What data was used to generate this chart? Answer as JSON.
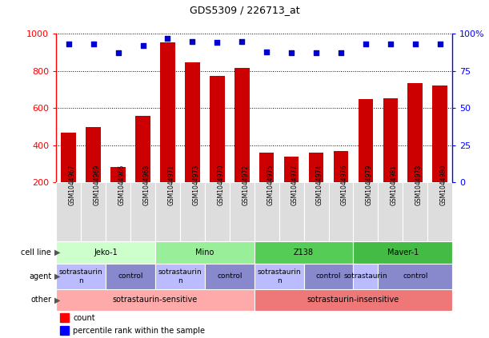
{
  "title": "GDS5309 / 226713_at",
  "samples": [
    "GSM1044967",
    "GSM1044969",
    "GSM1044966",
    "GSM1044968",
    "GSM1044971",
    "GSM1044973",
    "GSM1044970",
    "GSM1044972",
    "GSM1044975",
    "GSM1044977",
    "GSM1044974",
    "GSM1044976",
    "GSM1044979",
    "GSM1044981",
    "GSM1044978",
    "GSM1044980"
  ],
  "counts": [
    470,
    500,
    285,
    560,
    955,
    845,
    775,
    815,
    360,
    340,
    360,
    368,
    650,
    655,
    735,
    720
  ],
  "percentiles": [
    93,
    93,
    87,
    92,
    97,
    95,
    94,
    95,
    88,
    87,
    87,
    87,
    93,
    93,
    93,
    93
  ],
  "bar_color": "#cc0000",
  "dot_color": "#0000cc",
  "ylim_left": [
    200,
    1000
  ],
  "ylim_right": [
    0,
    100
  ],
  "yticks_left": [
    200,
    400,
    600,
    800,
    1000
  ],
  "yticks_right": [
    0,
    25,
    50,
    75,
    100
  ],
  "cell_lines": [
    {
      "label": "Jeko-1",
      "start": 0,
      "end": 4,
      "color": "#ccffcc"
    },
    {
      "label": "Mino",
      "start": 4,
      "end": 8,
      "color": "#99ee99"
    },
    {
      "label": "Z138",
      "start": 8,
      "end": 12,
      "color": "#55cc55"
    },
    {
      "label": "Maver-1",
      "start": 12,
      "end": 16,
      "color": "#44bb44"
    }
  ],
  "agents": [
    {
      "label": "sotrastaurin\nn",
      "start": 0,
      "end": 2,
      "color": "#bbbbff"
    },
    {
      "label": "control",
      "start": 2,
      "end": 4,
      "color": "#8888cc"
    },
    {
      "label": "sotrastaurin\nn",
      "start": 4,
      "end": 6,
      "color": "#bbbbff"
    },
    {
      "label": "control",
      "start": 6,
      "end": 8,
      "color": "#8888cc"
    },
    {
      "label": "sotrastaurin\nn",
      "start": 8,
      "end": 10,
      "color": "#bbbbff"
    },
    {
      "label": "control",
      "start": 10,
      "end": 12,
      "color": "#8888cc"
    },
    {
      "label": "sotrastaurin",
      "start": 12,
      "end": 13,
      "color": "#bbbbff"
    },
    {
      "label": "control",
      "start": 13,
      "end": 16,
      "color": "#8888cc"
    }
  ],
  "others": [
    {
      "label": "sotrastaurin-sensitive",
      "start": 0,
      "end": 8,
      "color": "#ffaaaa"
    },
    {
      "label": "sotrastaurin-insensitive",
      "start": 8,
      "end": 16,
      "color": "#ee7777"
    }
  ],
  "row_labels": [
    "cell line",
    "agent",
    "other"
  ],
  "legend_count": "count",
  "legend_pct": "percentile rank within the sample",
  "sample_bg_color": "#dddddd",
  "grid_color": "#888888"
}
